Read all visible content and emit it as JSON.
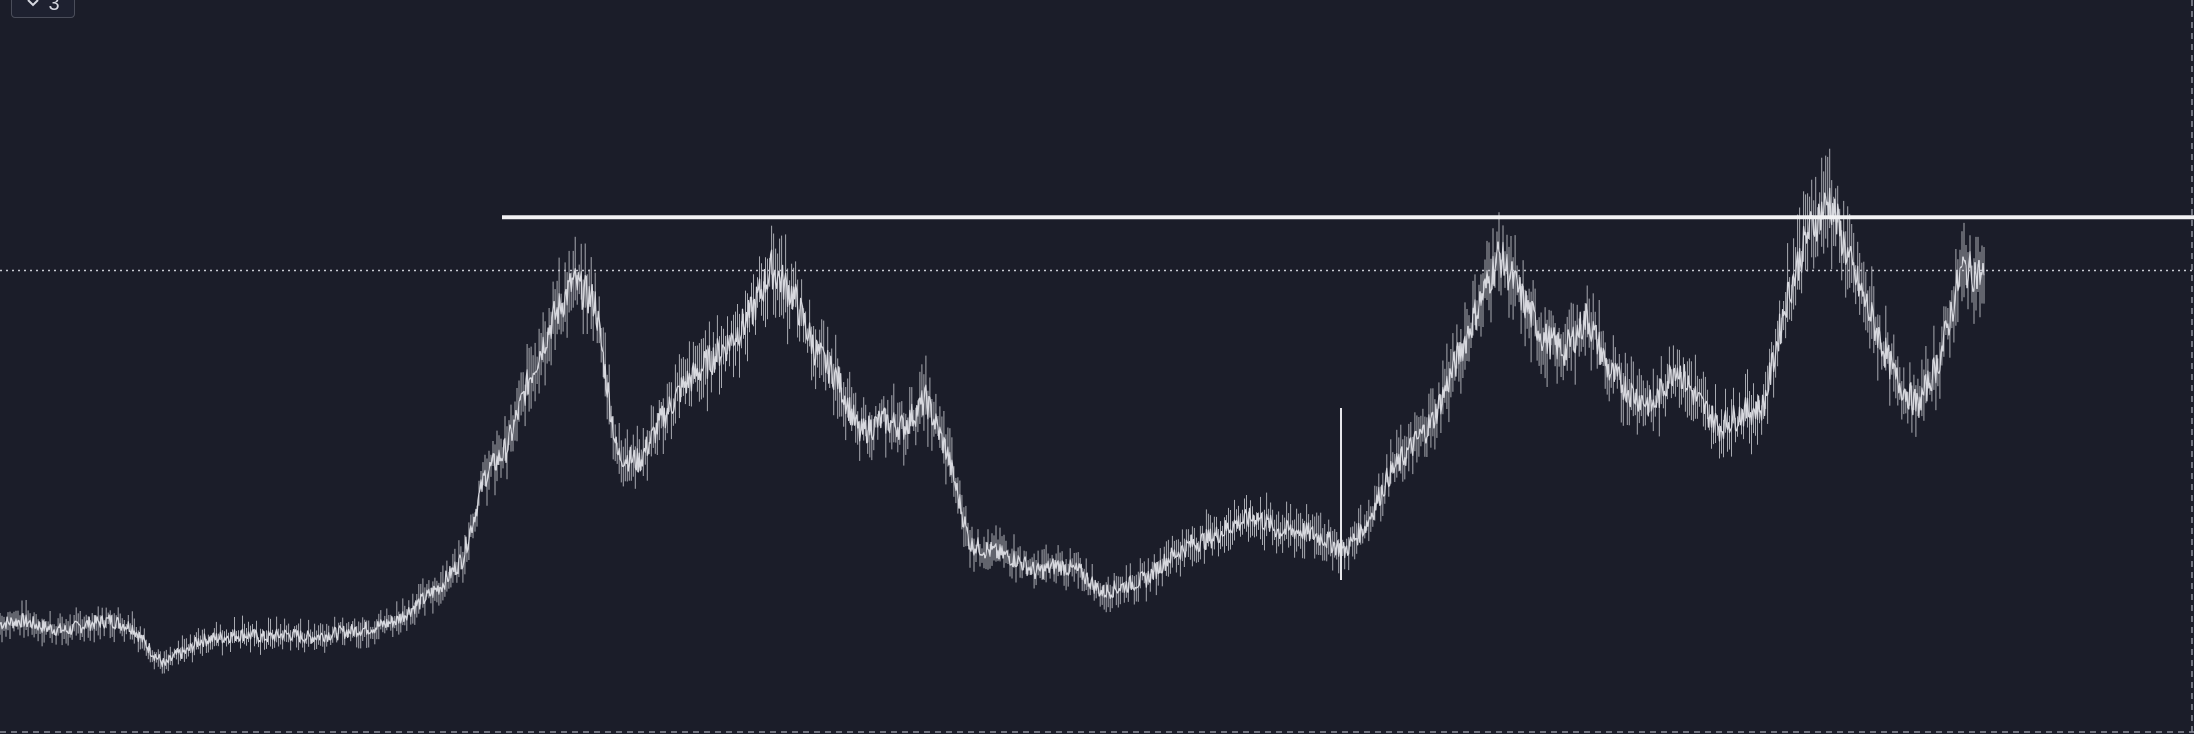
{
  "toolbar": {
    "indicators_count": "3",
    "toggle_icon": "chevron-down-icon"
  },
  "colors": {
    "background": "#1b1d29",
    "price": "#d8d9df",
    "resistance_line": "#f2f2f4",
    "current_price_line": "#c9cad2",
    "border_dash": "#8a8d99"
  },
  "chart_data": {
    "type": "line",
    "title": "",
    "xlabel": "",
    "ylabel": "",
    "grid": false,
    "ylim": [
      0,
      100
    ],
    "xlim": [
      0,
      100
    ],
    "series": [
      {
        "x": [
          0,
          1,
          2,
          3,
          4,
          5,
          6,
          7,
          7.5,
          8,
          8.5,
          9,
          10,
          11,
          12,
          13,
          14,
          15,
          16,
          17,
          18,
          19,
          20,
          21,
          22,
          23,
          24,
          25,
          26,
          27,
          28,
          29,
          30,
          31,
          32,
          33,
          34,
          35,
          36,
          37,
          38,
          39,
          40,
          41,
          42,
          43,
          44,
          45,
          46,
          47,
          48,
          49,
          50,
          51,
          52,
          53,
          54,
          55,
          56,
          57,
          58,
          59,
          60,
          61,
          62,
          63,
          64,
          65,
          66,
          67,
          68,
          69,
          70,
          71,
          72,
          73,
          74,
          75,
          76,
          77,
          78,
          79,
          80,
          81,
          82,
          83,
          84,
          85,
          86,
          87,
          88,
          89,
          90
        ],
        "values": [
          12.5,
          13,
          12,
          11.5,
          12.5,
          13,
          12,
          8,
          6.5,
          8,
          8.5,
          10,
          10.5,
          11,
          10.5,
          11,
          10.5,
          11,
          11.5,
          12,
          13,
          15.5,
          18,
          22,
          34,
          38,
          48,
          56,
          62,
          59,
          37,
          36,
          42,
          47,
          50,
          53,
          57,
          64,
          60,
          52,
          48,
          40,
          42,
          41,
          45,
          37,
          24,
          23,
          22,
          20,
          21,
          20,
          17,
          18,
          19,
          22,
          24,
          25,
          27,
          28,
          26,
          26,
          25,
          23,
          27,
          34,
          38,
          42,
          50,
          58,
          66,
          60,
          54,
          52,
          57,
          49,
          46,
          44,
          50,
          45,
          41,
          43,
          44,
          59,
          69,
          74,
          64,
          56,
          48,
          44,
          51,
          64,
          63
        ]
      }
    ],
    "annotations": {
      "resistance_level": 71.4,
      "current_price_level": 63.7
    }
  }
}
